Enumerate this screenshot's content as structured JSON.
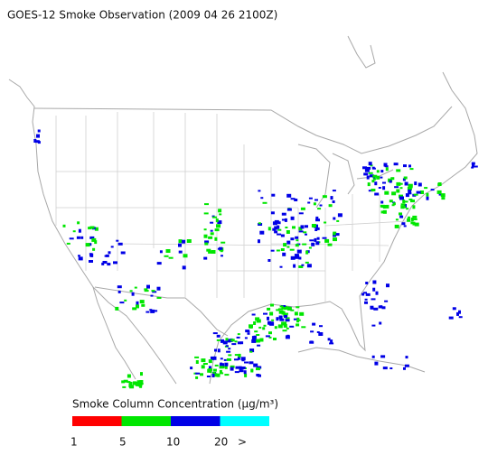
{
  "title": "GOES-12 Smoke Observation (2009 04 26  2100Z)",
  "legend": {
    "title": "Smoke Column Concentration (μg/m³)",
    "colors": [
      "#ff0000",
      "#00e600",
      "#0000e6",
      "#00ffff"
    ],
    "labels": [
      "1",
      "5",
      "10",
      "20",
      ">"
    ]
  }
}
